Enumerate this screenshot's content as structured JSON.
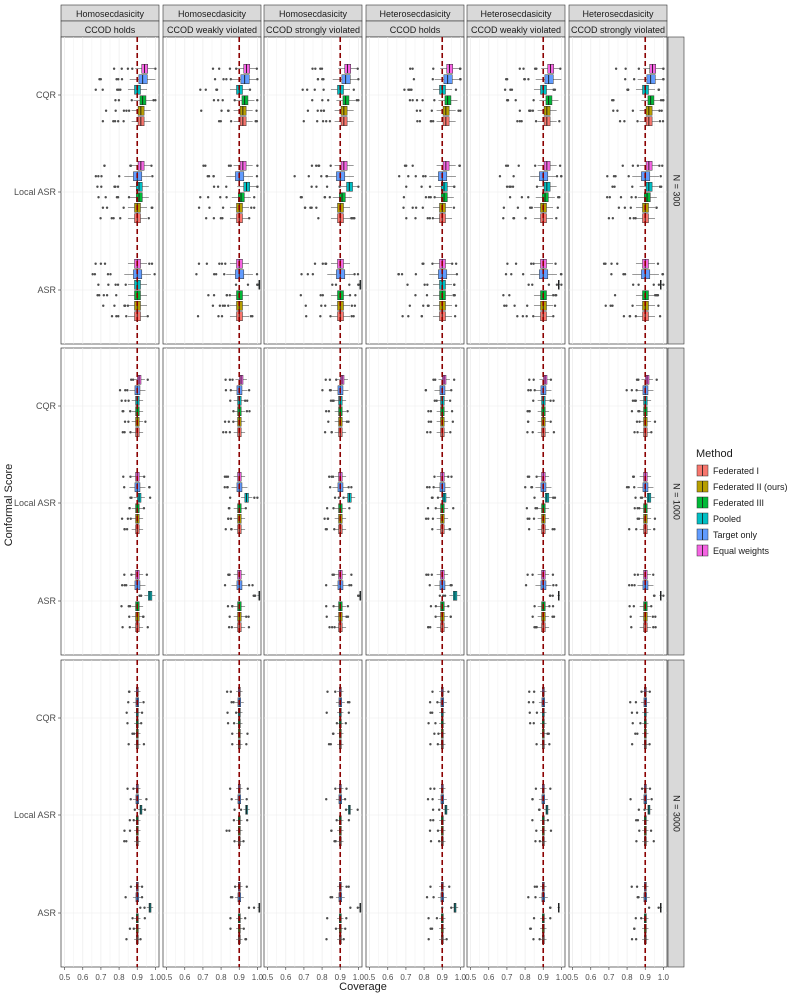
{
  "chart_data": {
    "type": "boxplot",
    "xlabel": "Coverage",
    "ylabel": "Conformal Score",
    "xlim": [
      0.48,
      1.02
    ],
    "xticks": [
      "0.5",
      "0.6",
      "0.7",
      "0.8",
      "0.9",
      "1.0"
    ],
    "reference_line": 0.9,
    "reference_color": "#8b0000",
    "grid": true,
    "legend_position": "right",
    "legend_title": "Method",
    "methods": [
      {
        "name": "Federated I",
        "color": "#f8766d"
      },
      {
        "name": "Federated II (ours)",
        "color": "#b79f00"
      },
      {
        "name": "Federated III",
        "color": "#00ba38"
      },
      {
        "name": "Pooled",
        "color": "#00bfc4"
      },
      {
        "name": "Target only",
        "color": "#619cff"
      },
      {
        "name": "Equal weights",
        "color": "#f564e3"
      }
    ],
    "scores": [
      "CQR",
      "Local ASR",
      "ASR"
    ],
    "col_strips_top": [
      "Homosecdasicity",
      "Homosecdasicity",
      "Homosecdasicity",
      "Heterosecdasicity",
      "Heterosecdasicity",
      "Heterosecdasicity"
    ],
    "col_strips_bottom": [
      "CCOD holds",
      "CCOD weakly violated",
      "CCOD strongly violated",
      "CCOD holds",
      "CCOD weakly violated",
      "CCOD strongly violated"
    ],
    "row_strips": [
      "N = 300",
      "N = 1000",
      "N = 3000"
    ],
    "approx_medians": {
      "N = 300": {
        "CQR": {
          "Federated I": 0.92,
          "Federated II (ours)": 0.92,
          "Federated III": 0.93,
          "Pooled": 0.9,
          "Target only": 0.93,
          "Equal weights": 0.94
        },
        "Local ASR": {
          "Federated I": 0.9,
          "Federated II (ours)": 0.9,
          "Federated III": 0.91,
          "Pooled": 0.91,
          "Target only": 0.9,
          "Equal weights": 0.92
        },
        "ASR": {
          "Federated I": 0.9,
          "Federated II (ours)": 0.9,
          "Federated III": 0.9,
          "Pooled": 0.9,
          "Target only": 0.9,
          "Equal weights": 0.9
        }
      },
      "N = 1000": {
        "CQR": {
          "Federated I": 0.9,
          "Federated II (ours)": 0.9,
          "Federated III": 0.9,
          "Pooled": 0.9,
          "Target only": 0.9,
          "Equal weights": 0.91
        },
        "Local ASR": {
          "Federated I": 0.9,
          "Federated II (ours)": 0.9,
          "Federated III": 0.9,
          "Pooled": 0.91,
          "Target only": 0.9,
          "Equal weights": 0.9
        },
        "ASR": {
          "Federated I": 0.9,
          "Federated II (ours)": 0.9,
          "Federated III": 0.9,
          "Pooled": 0.97,
          "Target only": 0.9,
          "Equal weights": 0.9
        }
      },
      "N = 3000": {
        "CQR": {
          "Federated I": 0.9,
          "Federated II (ours)": 0.9,
          "Federated III": 0.9,
          "Pooled": 0.9,
          "Target only": 0.9,
          "Equal weights": 0.9
        },
        "Local ASR": {
          "Federated I": 0.9,
          "Federated II (ours)": 0.9,
          "Federated III": 0.9,
          "Pooled": 0.92,
          "Target only": 0.9,
          "Equal weights": 0.9
        },
        "ASR": {
          "Federated I": 0.9,
          "Federated II (ours)": 0.9,
          "Federated III": 0.9,
          "Pooled": 0.97,
          "Target only": 0.9,
          "Equal weights": 0.9
        }
      }
    }
  }
}
